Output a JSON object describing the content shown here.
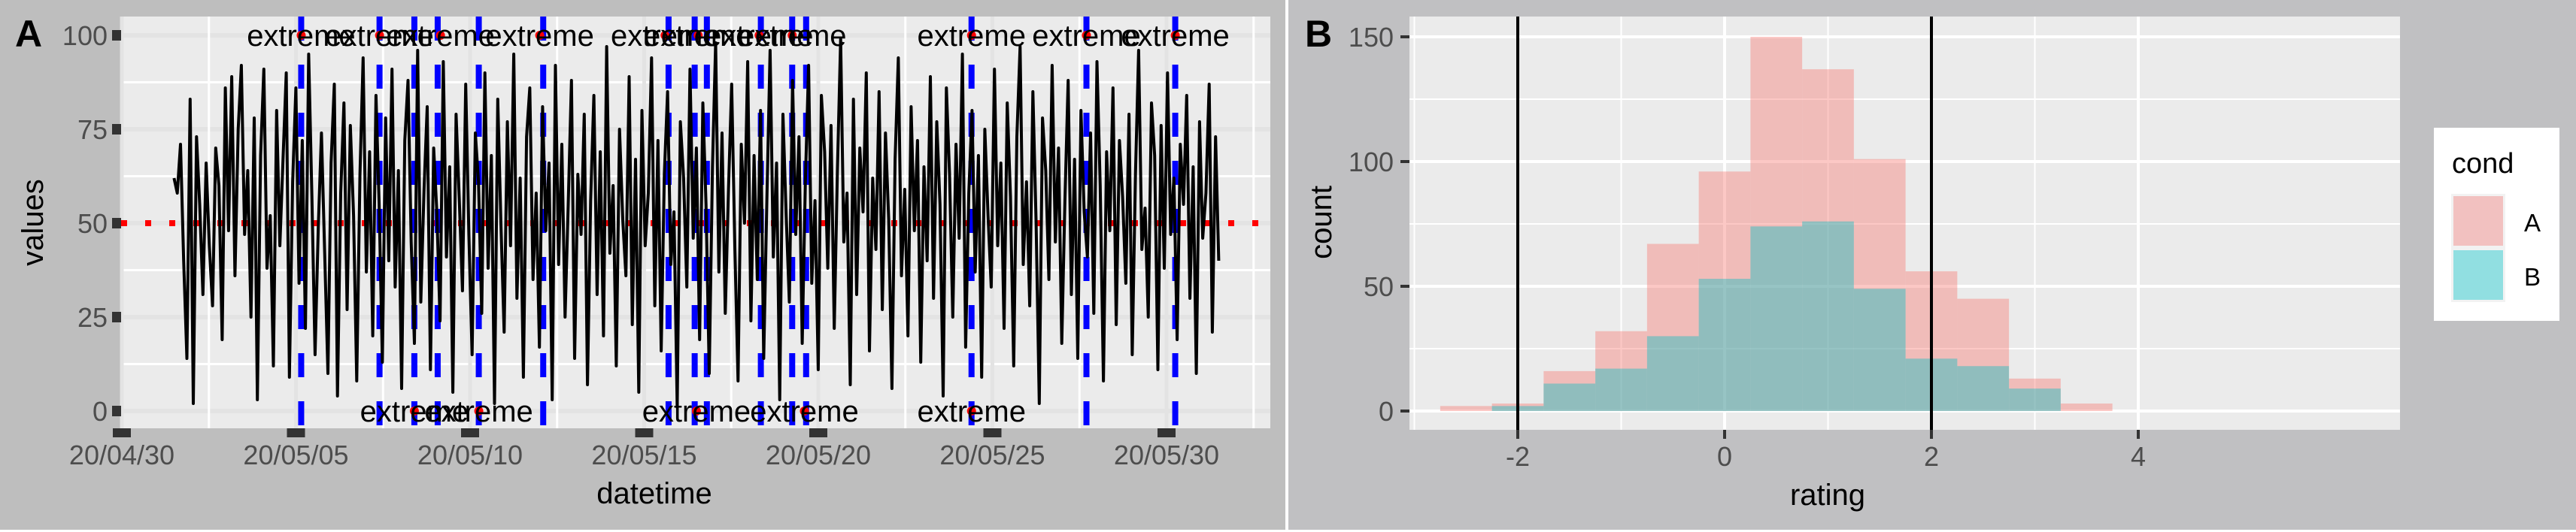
{
  "figure": {
    "background": "#bebebe",
    "separator_color": "#ffffff",
    "panel_bg": "#ebebeb",
    "grid_color": "#ffffff"
  },
  "chart_data": [
    {
      "panel_label": "A",
      "type": "line",
      "title": "",
      "xlabel": "datetime",
      "ylabel": "values",
      "x_tick_labels": [
        "20/04/30",
        "20/05/05",
        "20/05/10",
        "20/05/15",
        "20/05/20",
        "20/05/25",
        "20/05/30"
      ],
      "y_tick_labels": [
        "0",
        "25",
        "50",
        "75",
        "100"
      ],
      "y_ticks": [
        0,
        25,
        50,
        75,
        100
      ],
      "ylim": [
        -5,
        105
      ],
      "x_range_days": [
        0,
        33
      ],
      "series_start_day": 1.5,
      "series_end_day": 31.5,
      "series_color": "#000000",
      "hline": {
        "y": 50,
        "color": "#ff0000",
        "style": "dotted"
      },
      "extreme_marker_color": "#0000ff",
      "extreme_point_color": "#ff0000",
      "annotation_label": "extreme",
      "extremes_top": [
        {
          "day": 5.15,
          "value": 100,
          "label": "extreme"
        },
        {
          "day": 7.4,
          "value": 100,
          "label": "extreme"
        },
        {
          "day": 9.15,
          "value": 100,
          "label": "extreme"
        },
        {
          "day": 12.0,
          "value": 100,
          "label": "extreme"
        },
        {
          "day": 15.6,
          "value": 100,
          "label": "extreme"
        },
        {
          "day": 16.55,
          "value": 100,
          "label": "extreme"
        },
        {
          "day": 18.3,
          "value": 100,
          "label": "extreme"
        },
        {
          "day": 19.25,
          "value": 100,
          "label": "extreme"
        },
        {
          "day": 24.4,
          "value": 100,
          "label": "extreme"
        },
        {
          "day": 27.7,
          "value": 100,
          "label": "extreme"
        },
        {
          "day": 30.25,
          "value": 100,
          "label": "extreme"
        }
      ],
      "extremes_bottom": [
        {
          "day": 8.4,
          "value": 0,
          "label": "extreme"
        },
        {
          "day": 10.25,
          "value": 0,
          "label": "extreme"
        },
        {
          "day": 16.5,
          "value": 0,
          "label": "extreme"
        },
        {
          "day": 19.6,
          "value": 0,
          "label": "extreme"
        },
        {
          "day": 24.4,
          "value": 0,
          "label": "extreme"
        }
      ],
      "extreme_vlines_days": [
        5.15,
        7.4,
        8.4,
        9.07,
        10.25,
        12.1,
        15.7,
        16.45,
        16.8,
        18.35,
        19.25,
        19.65,
        24.4,
        27.7,
        30.25
      ],
      "values": [
        62,
        58,
        71,
        40,
        14,
        83,
        2,
        73,
        55,
        31,
        66,
        44,
        28,
        70,
        60,
        19,
        86,
        48,
        89,
        36,
        75,
        92,
        47,
        64,
        25,
        78,
        3,
        68,
        91,
        38,
        52,
        12,
        80,
        44,
        67,
        90,
        9,
        61,
        86,
        34,
        72,
        22,
        95,
        57,
        15,
        49,
        74,
        42,
        10,
        66,
        87,
        4,
        58,
        82,
        27,
        76,
        52,
        8,
        63,
        94,
        37,
        69,
        20,
        84,
        55,
        13,
        78,
        40,
        91,
        33,
        64,
        6,
        72,
        88,
        45,
        18,
        96,
        29,
        59,
        81,
        11,
        70,
        53,
        24,
        93,
        41,
        65,
        5,
        79,
        56,
        32,
        87,
        47,
        15,
        74,
        61,
        26,
        90,
        38,
        68,
        2,
        83,
        50,
        21,
        77,
        44,
        95,
        30,
        62,
        9,
        73,
        86,
        35,
        58,
        17,
        81,
        48,
        66,
        3,
        92,
        39,
        71,
        25,
        55,
        88,
        14,
        63,
        47,
        79,
        7,
        56,
        84,
        31,
        69,
        20,
        97,
        42,
        60,
        12,
        75,
        51,
        36,
        89,
        23,
        67,
        5,
        80,
        44,
        58,
        94,
        28,
        72,
        16,
        63,
        85,
        39,
        53,
        1,
        77,
        62,
        33,
        91,
        46,
        70,
        19,
        82,
        55,
        10,
        65,
        98,
        37,
        74,
        26,
        59,
        87,
        43,
        8,
        71,
        50,
        93,
        24,
        68,
        35,
        80,
        14,
        57,
        96,
        41,
        66,
        3,
        79,
        52,
        29,
        88,
        47,
        73,
        18,
        61,
        92,
        34,
        56,
        11,
        84,
        69,
        38,
        76,
        22,
        64,
        99,
        45,
        58,
        7,
        83,
        31,
        70,
        53,
        90,
        16,
        62,
        43,
        85,
        27,
        74,
        51,
        6,
        67,
        94,
        36,
        59,
        20,
        81,
        48,
        72,
        13,
        65,
        40,
        89,
        30,
        77,
        55,
        4,
        86,
        63,
        25,
        71,
        46,
        95,
        17,
        58,
        80,
        37,
        68,
        9,
        75,
        52,
        33,
        91,
        44,
        66,
        22,
        82,
        57,
        12,
        73,
        97,
        39,
        61,
        28,
        85,
        50,
        2,
        78,
        64,
        35,
        92,
        45,
        70,
        18,
        56,
        88,
        31,
        67,
        14,
        80,
        53,
        41,
        74,
        26,
        93,
        60,
        8,
        69,
        48,
        86,
        23,
        72,
        57,
        34,
        79,
        15,
        63,
        96,
        43,
        54,
        25,
        82,
        68,
        11,
        76,
        38,
        90,
        47,
        62,
        19,
        71,
        55,
        84,
        30,
        65,
        10,
        77,
        46,
        58,
        87,
        21,
        73,
        40
      ]
    },
    {
      "panel_label": "B",
      "type": "bar",
      "subtype": "overlapping_histogram",
      "title": "",
      "xlabel": "rating",
      "ylabel": "count",
      "x_tick_labels": [
        "-2",
        "0",
        "2",
        "4"
      ],
      "x_ticks": [
        -2,
        0,
        2,
        4
      ],
      "y_tick_labels": [
        "0",
        "50",
        "100",
        "150"
      ],
      "y_ticks": [
        0,
        50,
        100,
        150
      ],
      "xlim": [
        -3.0,
        4.1
      ],
      "ylim": [
        -7.5,
        157.5
      ],
      "bin_width": 0.5,
      "bin_starts": [
        -2.75,
        -2.25,
        -1.75,
        -1.25,
        -0.75,
        -0.25,
        0.25,
        0.75,
        1.25,
        1.75,
        2.25,
        2.75,
        3.25
      ],
      "series": [
        {
          "name": "A",
          "color": "#f8766d",
          "opacity": 0.4,
          "values": [
            2,
            3,
            16,
            32,
            67,
            96,
            150,
            137,
            101,
            56,
            45,
            13,
            3
          ]
        },
        {
          "name": "B",
          "color": "#00bfc4",
          "opacity": 0.4,
          "values": [
            0,
            2,
            11,
            17,
            30,
            53,
            74,
            76,
            49,
            21,
            18,
            9,
            0
          ]
        }
      ],
      "vlines": [
        -2,
        2
      ],
      "vline_color": "#000000",
      "legend": {
        "title": "cond",
        "items": [
          {
            "label": "A",
            "color": "#f2c1c0"
          },
          {
            "label": "B",
            "color": "#91dfe1"
          }
        ],
        "position": "right"
      }
    }
  ]
}
